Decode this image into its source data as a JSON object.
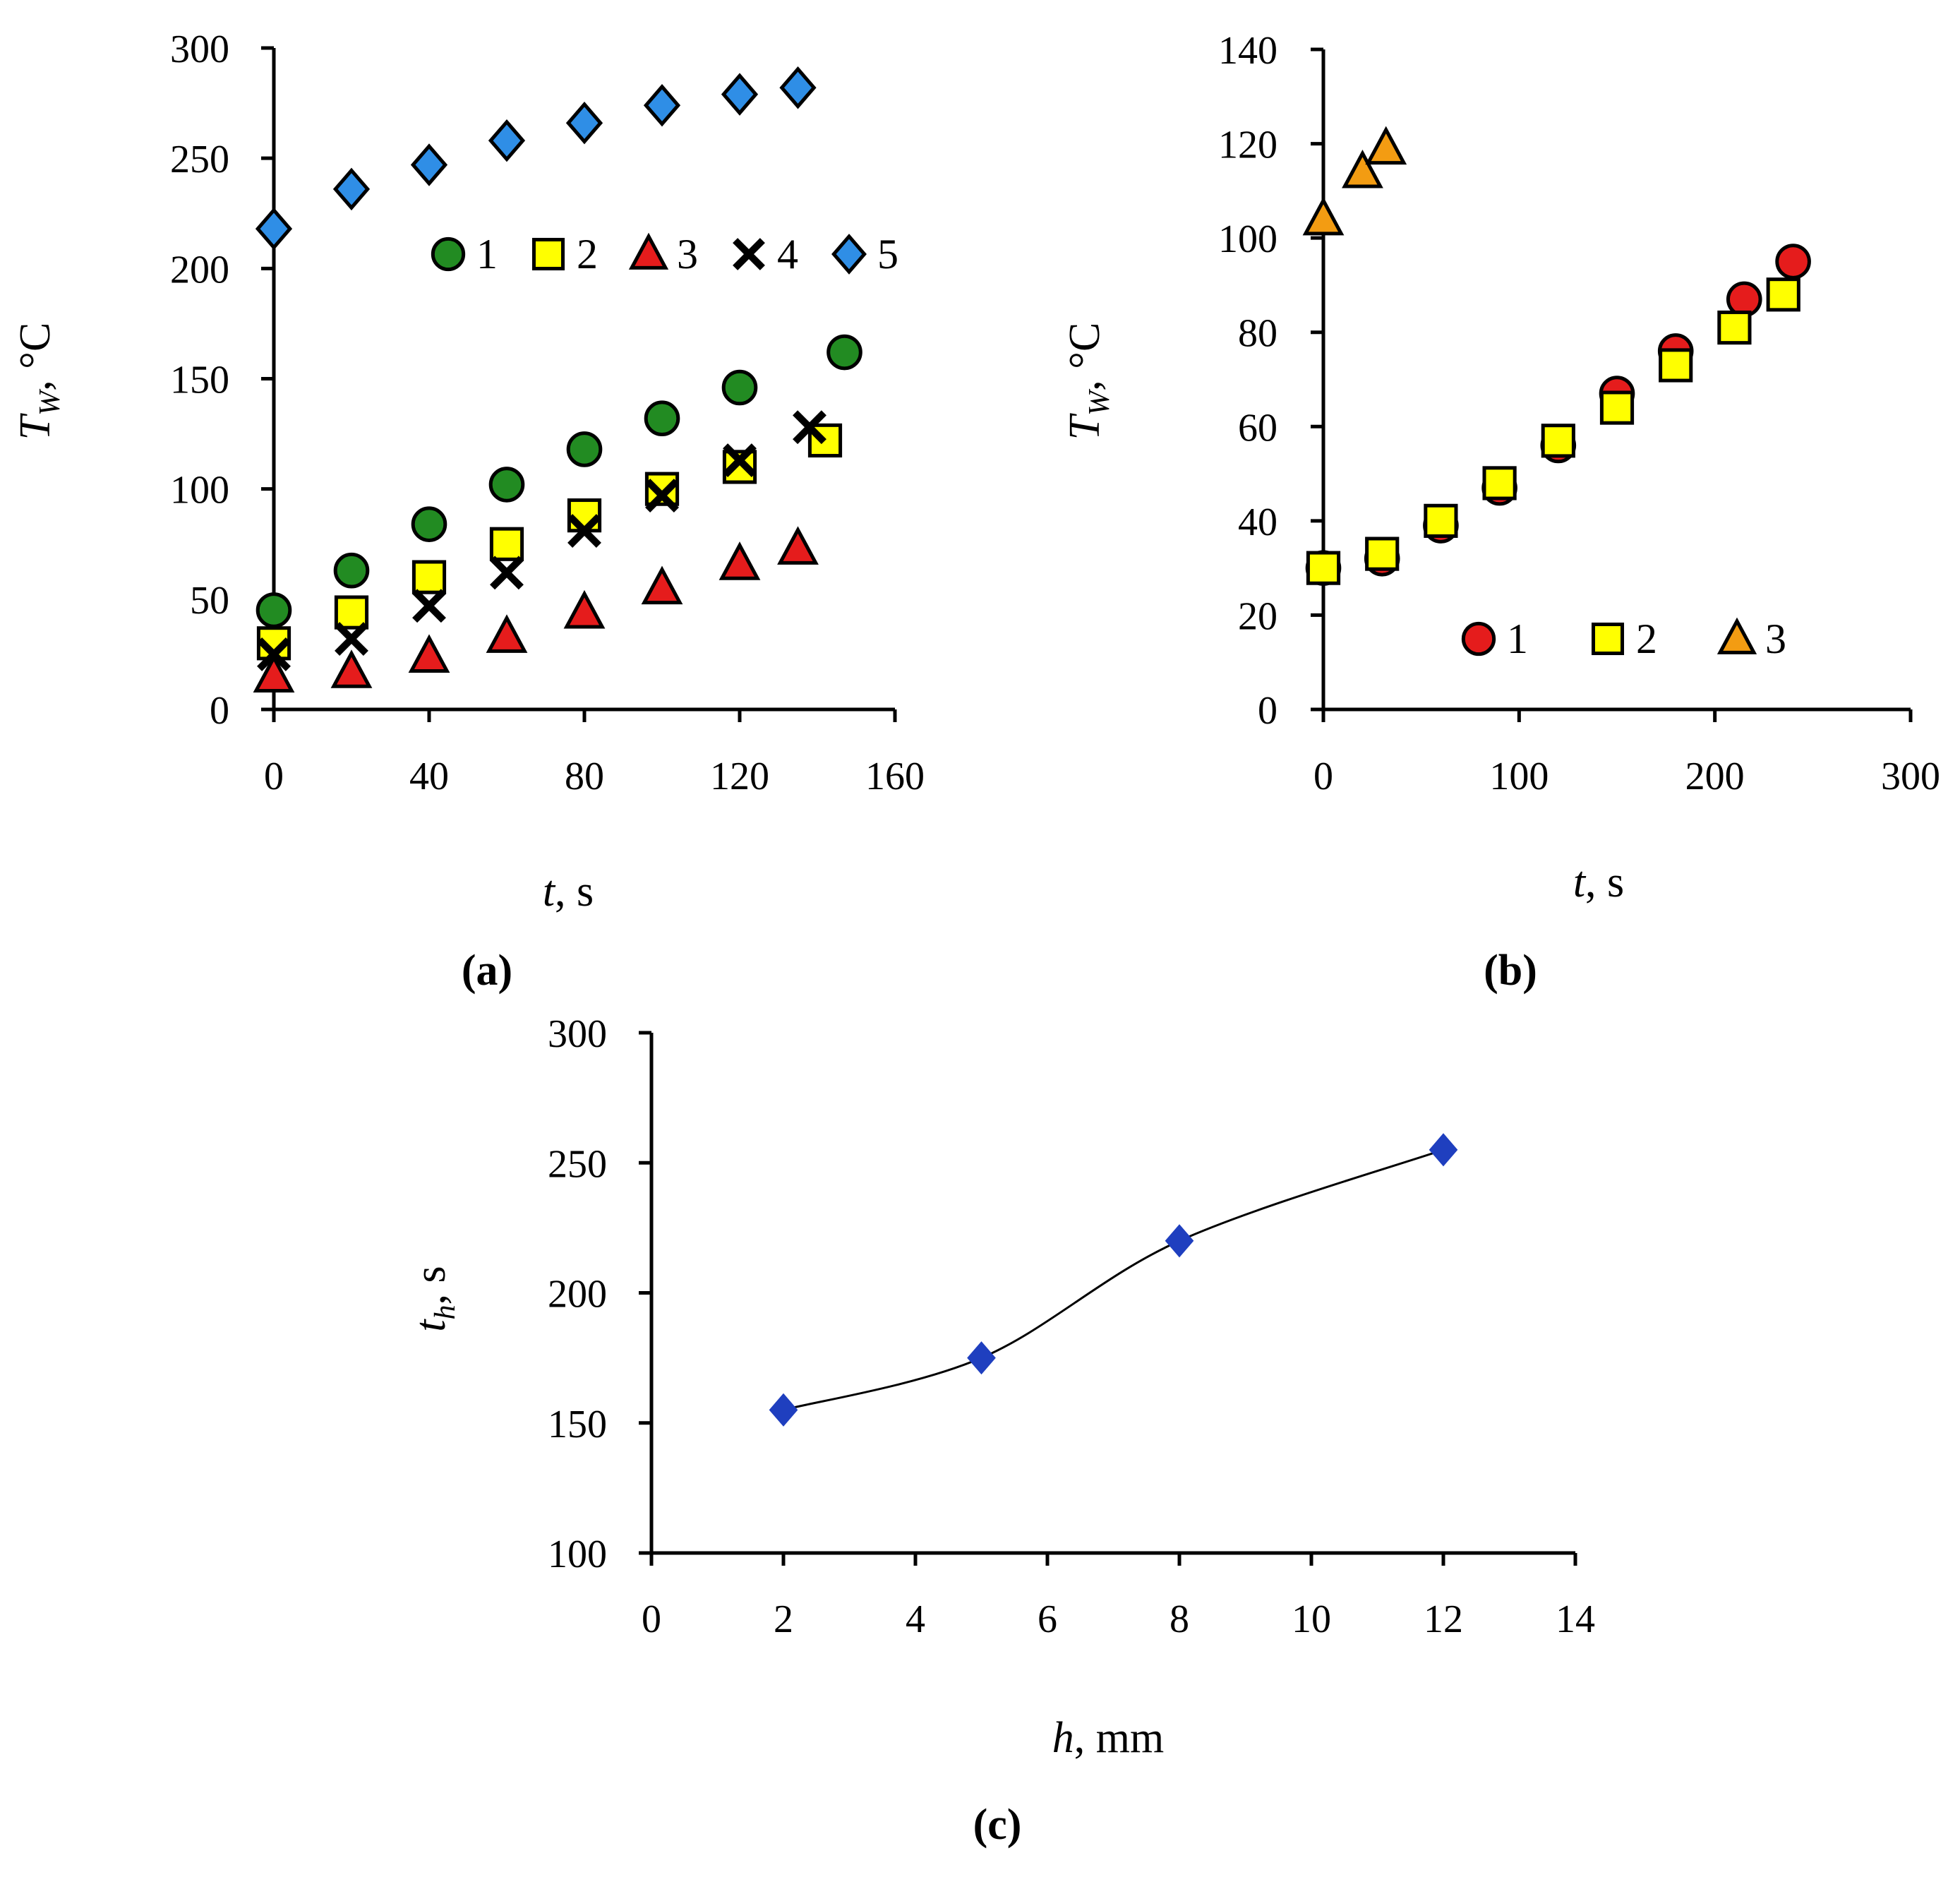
{
  "colors": {
    "green": "#228B22",
    "yellow": "#FFFF00",
    "red": "#E51C1C",
    "blue": "#2F8EE6",
    "orange": "#F39C12",
    "navy": "#1F3FBF"
  },
  "chart_data": [
    {
      "panel_label": "(a)",
      "type": "scatter",
      "xlabel_var": "t",
      "xlabel_unit": ", s",
      "ylabel_var": "T",
      "ylabel_sub": "W",
      "ylabel_unit": ", °C",
      "xlim": [
        0,
        160
      ],
      "ylim": [
        0,
        300
      ],
      "xticks": [
        "0",
        "40",
        "80",
        "120",
        "160"
      ],
      "yticks": [
        "0",
        "50",
        "100",
        "150",
        "200",
        "250",
        "300"
      ],
      "legend": [
        "1",
        "2",
        "3",
        "4",
        "5"
      ],
      "series": [
        {
          "name": "1",
          "marker": "circle",
          "color": "green",
          "x": [
            0,
            20,
            40,
            60,
            80,
            100,
            120,
            147
          ],
          "y": [
            45,
            63,
            84,
            102,
            118,
            132,
            146,
            162
          ]
        },
        {
          "name": "2",
          "marker": "square",
          "color": "yellow",
          "x": [
            0,
            20,
            40,
            60,
            80,
            100,
            120,
            142
          ],
          "y": [
            30,
            44,
            60,
            75,
            88,
            100,
            110,
            122
          ]
        },
        {
          "name": "3",
          "marker": "triangle",
          "color": "red",
          "x": [
            0,
            20,
            40,
            60,
            80,
            100,
            120,
            135
          ],
          "y": [
            15,
            17,
            24,
            33,
            44,
            55,
            66,
            73
          ]
        },
        {
          "name": "4",
          "marker": "cross",
          "color": "black",
          "x": [
            0,
            20,
            40,
            60,
            80,
            100,
            120,
            138
          ],
          "y": [
            25,
            32,
            47,
            62,
            81,
            97,
            113,
            128
          ]
        },
        {
          "name": "5",
          "marker": "diamond",
          "color": "blue",
          "x": [
            0,
            20,
            40,
            60,
            80,
            100,
            120,
            135
          ],
          "y": [
            218,
            236,
            247,
            258,
            266,
            274,
            279,
            282
          ]
        }
      ]
    },
    {
      "panel_label": "(b)",
      "type": "scatter",
      "xlabel_var": "t",
      "xlabel_unit": ", s",
      "ylabel_var": "T",
      "ylabel_sub": "W",
      "ylabel_unit": ", °C",
      "xlim": [
        0,
        300
      ],
      "ylim": [
        0,
        140
      ],
      "xticks": [
        "0",
        "100",
        "200",
        "300"
      ],
      "yticks": [
        "0",
        "20",
        "40",
        "60",
        "80",
        "100",
        "120",
        "140"
      ],
      "legend": [
        "1",
        "2",
        "3"
      ],
      "series": [
        {
          "name": "1",
          "marker": "circle",
          "color": "red",
          "x": [
            0,
            30,
            60,
            90,
            120,
            150,
            180,
            215,
            240
          ],
          "y": [
            30,
            32,
            39,
            47,
            56,
            67,
            76,
            87,
            95
          ]
        },
        {
          "name": "2",
          "marker": "square",
          "color": "yellow",
          "x": [
            0,
            30,
            60,
            90,
            120,
            150,
            180,
            210,
            235
          ],
          "y": [
            30,
            33,
            40,
            48,
            57,
            64,
            73,
            81,
            88
          ]
        },
        {
          "name": "3",
          "marker": "triangle",
          "color": "orange",
          "x": [
            0,
            20,
            32
          ],
          "y": [
            104,
            114,
            119
          ]
        }
      ]
    },
    {
      "panel_label": "(c)",
      "type": "line",
      "xlabel_var": "h",
      "xlabel_unit": ", mm",
      "ylabel_var": "t",
      "ylabel_sub": "h",
      "ylabel_unit": ", s",
      "xlim": [
        0,
        14
      ],
      "ylim": [
        100,
        300
      ],
      "xticks": [
        "0",
        "2",
        "4",
        "6",
        "8",
        "10",
        "12",
        "14"
      ],
      "yticks": [
        "100",
        "150",
        "200",
        "250",
        "300"
      ],
      "series": [
        {
          "name": "t_h",
          "marker": "diamond",
          "color": "navy",
          "x": [
            2,
            5,
            8,
            12
          ],
          "y": [
            155,
            175,
            220,
            255
          ]
        }
      ]
    }
  ]
}
